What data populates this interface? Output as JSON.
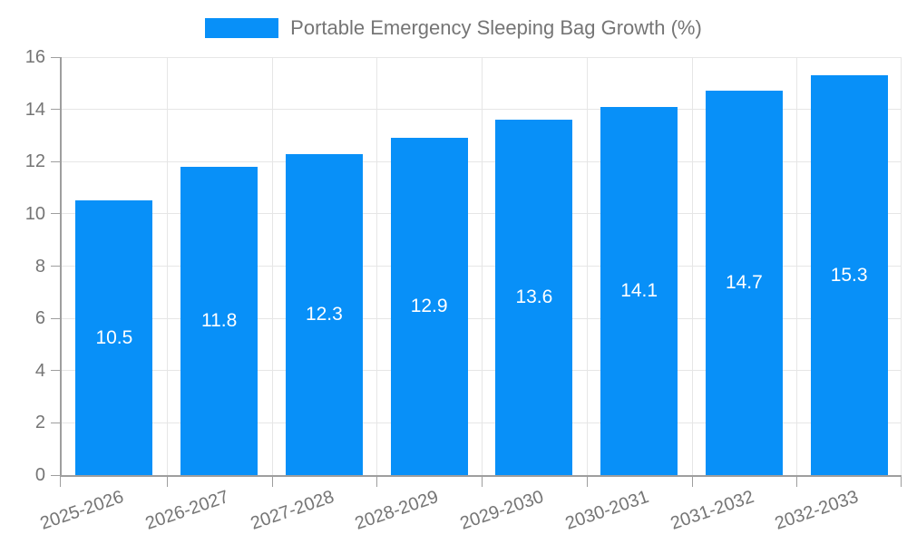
{
  "legend": {
    "label": "Portable Emergency Sleeping Bag Growth (%)"
  },
  "colors": {
    "bar": "#0890f8",
    "grid": "#e6e6e6",
    "axis": "#9e9e9e",
    "tick": "#9e9e9e",
    "tick_text": "#757575",
    "legend_text": "#757575",
    "value_label": "#ffffff",
    "background": "#ffffff"
  },
  "chart_data": {
    "type": "bar",
    "title": "Portable Emergency Sleeping Bag Growth (%)",
    "xlabel": "",
    "ylabel": "",
    "categories": [
      "2025-2026",
      "2026-2027",
      "2027-2028",
      "2028-2029",
      "2029-2030",
      "2030-2031",
      "2031-2032",
      "2032-2033"
    ],
    "values": [
      10.5,
      11.8,
      12.3,
      12.9,
      13.6,
      14.1,
      14.7,
      15.3
    ],
    "value_labels": [
      "10.5",
      "11.8",
      "12.3",
      "12.9",
      "13.6",
      "14.1",
      "14.7",
      "15.3"
    ],
    "ylim": [
      0,
      16
    ],
    "yticks": [
      0,
      2,
      4,
      6,
      8,
      10,
      12,
      14,
      16
    ],
    "grid": true,
    "legend_position": "top",
    "x_label_rotation_deg": -19
  }
}
